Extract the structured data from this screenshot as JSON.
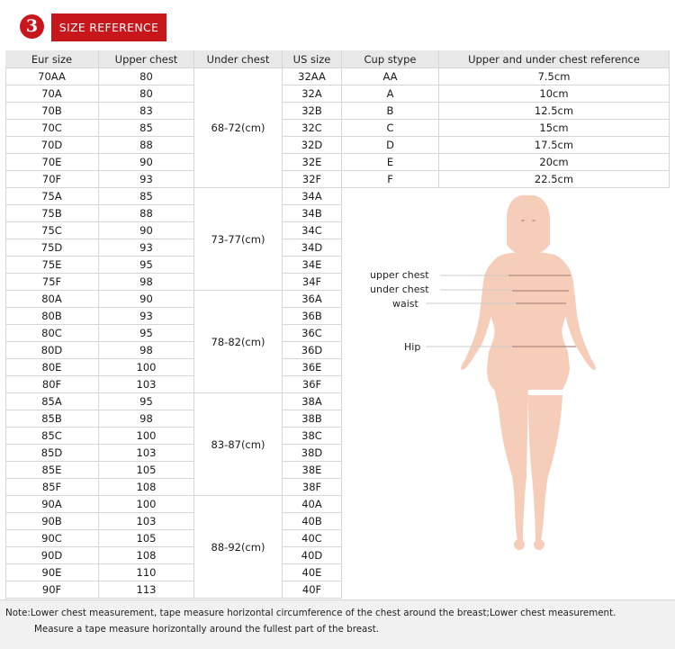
{
  "header": {
    "badge_number": "3",
    "title": "SIZE REFERENCE",
    "accent_color": "#c8161d"
  },
  "table": {
    "headers": {
      "eur": "Eur size",
      "upper": "Upper chest",
      "under": "Under chest",
      "us": "US size",
      "cup": "Cup stype",
      "ref": "Upper and under chest reference"
    },
    "rows": [
      {
        "eur": "70AA",
        "upper": "80",
        "us": "32AA"
      },
      {
        "eur": "70A",
        "upper": "80",
        "us": "32A"
      },
      {
        "eur": "70B",
        "upper": "83",
        "us": "32B"
      },
      {
        "eur": "70C",
        "upper": "85",
        "us": "32C"
      },
      {
        "eur": "70D",
        "upper": "88",
        "us": "32D"
      },
      {
        "eur": "70E",
        "upper": "90",
        "us": "32E"
      },
      {
        "eur": "70F",
        "upper": "93",
        "us": "32F"
      },
      {
        "eur": "75A",
        "upper": "85",
        "us": "34A"
      },
      {
        "eur": "75B",
        "upper": "88",
        "us": "34B"
      },
      {
        "eur": "75C",
        "upper": "90",
        "us": "34C"
      },
      {
        "eur": "75D",
        "upper": "93",
        "us": "34D"
      },
      {
        "eur": "75E",
        "upper": "95",
        "us": "34E"
      },
      {
        "eur": "75F",
        "upper": "98",
        "us": "34F"
      },
      {
        "eur": "80A",
        "upper": "90",
        "us": "36A"
      },
      {
        "eur": "80B",
        "upper": "93",
        "us": "36B"
      },
      {
        "eur": "80C",
        "upper": "95",
        "us": "36C"
      },
      {
        "eur": "80D",
        "upper": "98",
        "us": "36D"
      },
      {
        "eur": "80E",
        "upper": "100",
        "us": "36E"
      },
      {
        "eur": "80F",
        "upper": "103",
        "us": "36F"
      },
      {
        "eur": "85A",
        "upper": "95",
        "us": "38A"
      },
      {
        "eur": "85B",
        "upper": "98",
        "us": "38B"
      },
      {
        "eur": "85C",
        "upper": "100",
        "us": "38C"
      },
      {
        "eur": "85D",
        "upper": "103",
        "us": "38D"
      },
      {
        "eur": "85E",
        "upper": "105",
        "us": "38E"
      },
      {
        "eur": "85F",
        "upper": "108",
        "us": "38F"
      },
      {
        "eur": "90A",
        "upper": "100",
        "us": "40A"
      },
      {
        "eur": "90B",
        "upper": "103",
        "us": "40B"
      },
      {
        "eur": "90C",
        "upper": "105",
        "us": "40C"
      },
      {
        "eur": "90D",
        "upper": "108",
        "us": "40D"
      },
      {
        "eur": "90E",
        "upper": "110",
        "us": "40E"
      },
      {
        "eur": "90F",
        "upper": "113",
        "us": "40F"
      }
    ],
    "under_groups": [
      "68-72(cm)",
      "73-77(cm)",
      "78-82(cm)",
      "83-87(cm)",
      "88-92(cm)"
    ],
    "cups": [
      {
        "cup": "AA",
        "ref": "7.5cm"
      },
      {
        "cup": "A",
        "ref": "10cm"
      },
      {
        "cup": "B",
        "ref": "12.5cm"
      },
      {
        "cup": "C",
        "ref": "15cm"
      },
      {
        "cup": "D",
        "ref": "17.5cm"
      },
      {
        "cup": "E",
        "ref": "20cm"
      },
      {
        "cup": "F",
        "ref": "22.5cm"
      }
    ]
  },
  "figure": {
    "labels": {
      "upper_chest": "upper chest",
      "under_chest": "under chest",
      "waist": "waist",
      "hip": "Hip"
    },
    "body_color": "#f6cdb8",
    "line_color": "#b08a80"
  },
  "note": {
    "line1": "Note:Lower chest measurement, tape measure horizontal circumference of the chest around the breast;Lower chest measurement.",
    "line2": "Measure a tape measure horizontally around the fullest part of the breast."
  }
}
